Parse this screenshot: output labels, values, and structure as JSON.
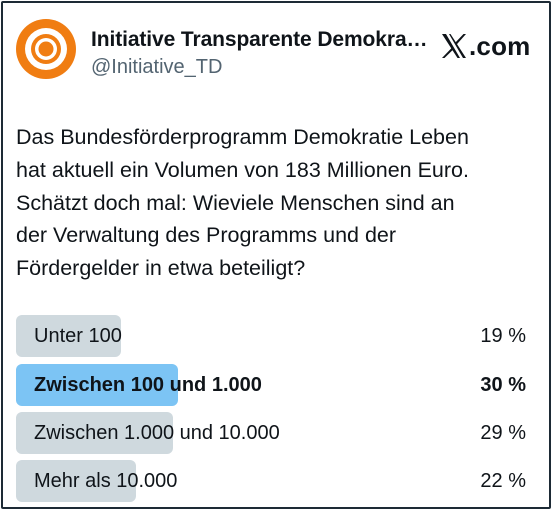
{
  "author": {
    "name": "Initiative Transparente Demokra…",
    "handle": "@Initiative_TD",
    "avatar_icon": "eye-logo-icon",
    "avatar_color": "#f07d12"
  },
  "brand": {
    "icon": "x-logo-icon",
    "label": ".com"
  },
  "tweet": {
    "lines": [
      "Das Bundesförderprogramm Demokratie Leben",
      "hat aktuell ein Volumen von 183 Millionen Euro.",
      "Schätzt doch mal: Wieviele Menschen sind an",
      "der Verwaltung des Programms und der",
      "Fördergelder in etwa beteiligt?"
    ]
  },
  "poll": {
    "options": [
      {
        "label": "Unter 100",
        "percent_text": "19 %",
        "percent": 19,
        "winner": false
      },
      {
        "label": "Zwischen 100 und 1.000",
        "percent_text": "30 %",
        "percent": 30,
        "winner": true
      },
      {
        "label": "Zwischen 1.000 und 10.000",
        "percent_text": "29 %",
        "percent": 29,
        "winner": false
      },
      {
        "label": "Mehr als 10.000",
        "percent_text": "22 %",
        "percent": 22,
        "winner": false
      }
    ],
    "colors": {
      "bar": "#cfd9de",
      "winner_bar": "#7cc4f4"
    }
  }
}
